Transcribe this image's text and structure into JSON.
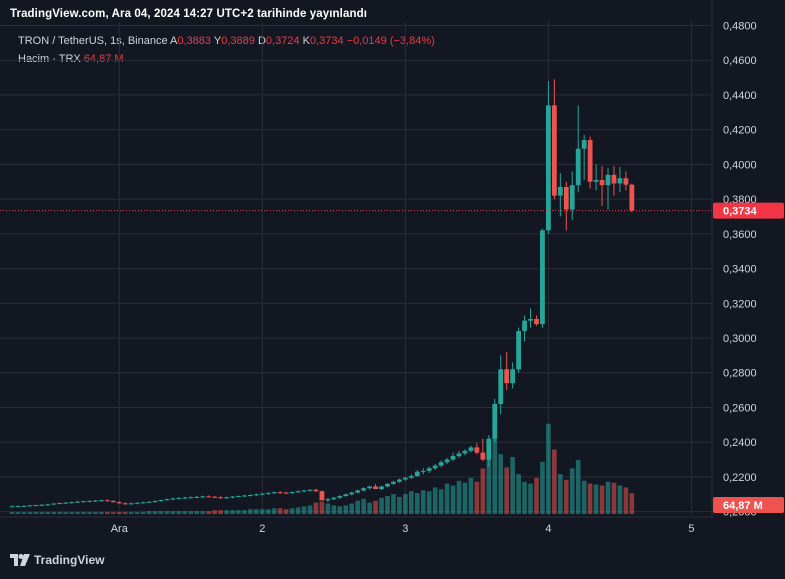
{
  "header": {
    "title": "TradingView.com, Ara 04, 2024 14:27 UTC+2 tarihinde yayınlandı"
  },
  "legend": {
    "symbol": "TRON / TetherUS, 1s, Binance",
    "open_label": "A",
    "open": "0,3883",
    "high_label": "Y",
    "high": "0,3889",
    "low_label": "D",
    "low": "0,3724",
    "close_label": "K",
    "close": "0,3734",
    "change": "−0,0149 (−3,84%)",
    "volume_label": "Hacim · TRX",
    "volume": "64,87 M"
  },
  "footer": {
    "brand": "TradingView"
  },
  "colors": {
    "up": "#26a69a",
    "down": "#ef5350",
    "price_line": "#f23645",
    "background": "#131722",
    "grid": "#2a2e39"
  },
  "chart_data": {
    "type": "candlestick",
    "symbol": "TRON / TetherUS",
    "interval": "1s",
    "exchange": "Binance",
    "y_ticks": [
      "0,4800",
      "0,4600",
      "0,4400",
      "0,4200",
      "0,4000",
      "0,3800",
      "0,3600",
      "0,3400",
      "0,3200",
      "0,3000",
      "0,2800",
      "0,2600",
      "0,2400",
      "0,2200",
      "0,2000"
    ],
    "y_tick_values": [
      0.48,
      0.46,
      0.44,
      0.42,
      0.4,
      0.38,
      0.36,
      0.34,
      0.32,
      0.3,
      0.28,
      0.26,
      0.24,
      0.22,
      0.2
    ],
    "ylim": [
      0.1975,
      0.482
    ],
    "x_ticks": [
      {
        "label": "Ara",
        "index": 18
      },
      {
        "label": "2",
        "index": 42
      },
      {
        "label": "3",
        "index": 66
      },
      {
        "label": "4",
        "index": 90
      },
      {
        "label": "5",
        "index": 114
      }
    ],
    "current_price_label": "0,3734",
    "current_price": 0.3734,
    "volume_label": "64,87 M",
    "volume_max": 100,
    "ohlc": [
      [
        0.203,
        0.2036,
        0.2026,
        0.2031
      ],
      [
        0.2031,
        0.2036,
        0.2027,
        0.2032
      ],
      [
        0.2032,
        0.2037,
        0.2028,
        0.2033
      ],
      [
        0.2033,
        0.2039,
        0.2029,
        0.2036
      ],
      [
        0.2036,
        0.204,
        0.2031,
        0.2038
      ],
      [
        0.2038,
        0.2043,
        0.2033,
        0.204
      ],
      [
        0.204,
        0.2045,
        0.2035,
        0.2042
      ],
      [
        0.2042,
        0.2048,
        0.2038,
        0.2047
      ],
      [
        0.2047,
        0.2052,
        0.2042,
        0.205
      ],
      [
        0.205,
        0.2056,
        0.2045,
        0.2052
      ],
      [
        0.2052,
        0.2058,
        0.2047,
        0.2055
      ],
      [
        0.2055,
        0.2061,
        0.205,
        0.2058
      ],
      [
        0.2058,
        0.2063,
        0.2052,
        0.206
      ],
      [
        0.206,
        0.2065,
        0.2054,
        0.2062
      ],
      [
        0.2062,
        0.2067,
        0.2056,
        0.2064
      ],
      [
        0.2064,
        0.2069,
        0.2058,
        0.2066
      ],
      [
        0.2066,
        0.207,
        0.2058,
        0.2062
      ],
      [
        0.2062,
        0.2066,
        0.2052,
        0.2055
      ],
      [
        0.2055,
        0.206,
        0.2046,
        0.2048
      ],
      [
        0.2048,
        0.2054,
        0.204,
        0.2045
      ],
      [
        0.2045,
        0.2052,
        0.204,
        0.2048
      ],
      [
        0.2048,
        0.2054,
        0.2043,
        0.2051
      ],
      [
        0.2051,
        0.2057,
        0.2046,
        0.2054
      ],
      [
        0.2054,
        0.206,
        0.2049,
        0.2057
      ],
      [
        0.2057,
        0.2064,
        0.2052,
        0.2061
      ],
      [
        0.2061,
        0.2069,
        0.2056,
        0.2067
      ],
      [
        0.2067,
        0.2075,
        0.2062,
        0.2072
      ],
      [
        0.2072,
        0.208,
        0.2066,
        0.2076
      ],
      [
        0.2076,
        0.2084,
        0.207,
        0.2079
      ],
      [
        0.2079,
        0.2086,
        0.2073,
        0.2081
      ],
      [
        0.2081,
        0.2088,
        0.2076,
        0.2083
      ],
      [
        0.2083,
        0.209,
        0.2078,
        0.2085
      ],
      [
        0.2085,
        0.2092,
        0.2079,
        0.2088
      ],
      [
        0.2088,
        0.2094,
        0.2081,
        0.2086
      ],
      [
        0.2086,
        0.209,
        0.2078,
        0.2083
      ],
      [
        0.2083,
        0.2088,
        0.2075,
        0.208
      ],
      [
        0.208,
        0.2086,
        0.2073,
        0.2083
      ],
      [
        0.2083,
        0.209,
        0.2077,
        0.2087
      ],
      [
        0.2087,
        0.2094,
        0.2082,
        0.209
      ],
      [
        0.209,
        0.2097,
        0.2085,
        0.2093
      ],
      [
        0.2093,
        0.21,
        0.2087,
        0.2096
      ],
      [
        0.2096,
        0.2104,
        0.209,
        0.21
      ],
      [
        0.21,
        0.2108,
        0.2094,
        0.2104
      ],
      [
        0.2104,
        0.2112,
        0.2097,
        0.2108
      ],
      [
        0.2108,
        0.2116,
        0.2101,
        0.2112
      ],
      [
        0.2112,
        0.2118,
        0.2103,
        0.211
      ],
      [
        0.211,
        0.2115,
        0.2101,
        0.2108
      ],
      [
        0.2108,
        0.2116,
        0.21,
        0.2113
      ],
      [
        0.2113,
        0.2122,
        0.2107,
        0.2118
      ],
      [
        0.2118,
        0.2126,
        0.2111,
        0.2122
      ],
      [
        0.2122,
        0.213,
        0.2115,
        0.2126
      ],
      [
        0.2126,
        0.2132,
        0.2113,
        0.2118
      ],
      [
        0.2118,
        0.2122,
        0.2088,
        0.2065
      ],
      [
        0.2065,
        0.208,
        0.2055,
        0.2072
      ],
      [
        0.2072,
        0.2085,
        0.2066,
        0.208
      ],
      [
        0.208,
        0.2095,
        0.2074,
        0.209
      ],
      [
        0.209,
        0.2105,
        0.2085,
        0.21
      ],
      [
        0.21,
        0.2115,
        0.2094,
        0.211
      ],
      [
        0.211,
        0.2128,
        0.2104,
        0.2122
      ],
      [
        0.2122,
        0.214,
        0.2116,
        0.2135
      ],
      [
        0.2135,
        0.215,
        0.2128,
        0.2145
      ],
      [
        0.2145,
        0.216,
        0.2136,
        0.213
      ],
      [
        0.213,
        0.215,
        0.2124,
        0.2145
      ],
      [
        0.2145,
        0.2165,
        0.214,
        0.216
      ],
      [
        0.216,
        0.2178,
        0.2154,
        0.2172
      ],
      [
        0.2172,
        0.219,
        0.2166,
        0.2185
      ],
      [
        0.2185,
        0.22,
        0.2178,
        0.2195
      ],
      [
        0.2195,
        0.2215,
        0.2188,
        0.2205
      ],
      [
        0.2205,
        0.224,
        0.22,
        0.223
      ],
      [
        0.223,
        0.225,
        0.2215,
        0.2235
      ],
      [
        0.2235,
        0.226,
        0.2222,
        0.225
      ],
      [
        0.225,
        0.2275,
        0.224,
        0.2265
      ],
      [
        0.2265,
        0.2295,
        0.2255,
        0.2285
      ],
      [
        0.2285,
        0.231,
        0.2275,
        0.23
      ],
      [
        0.23,
        0.234,
        0.229,
        0.232
      ],
      [
        0.232,
        0.235,
        0.231,
        0.2335
      ],
      [
        0.2335,
        0.236,
        0.2325,
        0.235
      ],
      [
        0.235,
        0.238,
        0.234,
        0.237
      ],
      [
        0.237,
        0.2395,
        0.233,
        0.234
      ],
      [
        0.234,
        0.242,
        0.229,
        0.23
      ],
      [
        0.23,
        0.244,
        0.226,
        0.242
      ],
      [
        0.242,
        0.265,
        0.24,
        0.262
      ],
      [
        0.262,
        0.29,
        0.256,
        0.282
      ],
      [
        0.282,
        0.292,
        0.27,
        0.274
      ],
      [
        0.274,
        0.286,
        0.271,
        0.282
      ],
      [
        0.282,
        0.306,
        0.28,
        0.304
      ],
      [
        0.304,
        0.313,
        0.298,
        0.31
      ],
      [
        0.31,
        0.317,
        0.306,
        0.311
      ],
      [
        0.311,
        0.313,
        0.307,
        0.308
      ],
      [
        0.308,
        0.363,
        0.306,
        0.362
      ],
      [
        0.362,
        0.448,
        0.36,
        0.434
      ],
      [
        0.434,
        0.449,
        0.38,
        0.382
      ],
      [
        0.382,
        0.395,
        0.37,
        0.387
      ],
      [
        0.387,
        0.39,
        0.362,
        0.374
      ],
      [
        0.374,
        0.396,
        0.368,
        0.388
      ],
      [
        0.388,
        0.434,
        0.384,
        0.409
      ],
      [
        0.409,
        0.417,
        0.391,
        0.414
      ],
      [
        0.414,
        0.416,
        0.386,
        0.39
      ],
      [
        0.39,
        0.4,
        0.385,
        0.391
      ],
      [
        0.391,
        0.399,
        0.376,
        0.388
      ],
      [
        0.388,
        0.398,
        0.374,
        0.394
      ],
      [
        0.394,
        0.399,
        0.382,
        0.389
      ],
      [
        0.389,
        0.3985,
        0.384,
        0.392
      ],
      [
        0.392,
        0.396,
        0.385,
        0.3883
      ],
      [
        0.3883,
        0.3889,
        0.3724,
        0.3734
      ]
    ],
    "volume": [
      2,
      2,
      2,
      2,
      2,
      2,
      2,
      2,
      2,
      2,
      2,
      2,
      2,
      2,
      2,
      2,
      2,
      2,
      2,
      2,
      2,
      2,
      2,
      3,
      3,
      3,
      3,
      3,
      3,
      3,
      3,
      3,
      3,
      3,
      4,
      4,
      4,
      4,
      4,
      4,
      5,
      5,
      5,
      5,
      6,
      6,
      5,
      6,
      7,
      8,
      9,
      12,
      13,
      11,
      9,
      8,
      9,
      11,
      14,
      16,
      12,
      14,
      17,
      19,
      21,
      18,
      21,
      24,
      22,
      25,
      24,
      28,
      26,
      32,
      30,
      35,
      33,
      38,
      34,
      48,
      70,
      98,
      63,
      49,
      60,
      42,
      34,
      32,
      38,
      55,
      95,
      68,
      42,
      36,
      48,
      57,
      35,
      32,
      31,
      30,
      34,
      33,
      30,
      28,
      22
    ]
  }
}
